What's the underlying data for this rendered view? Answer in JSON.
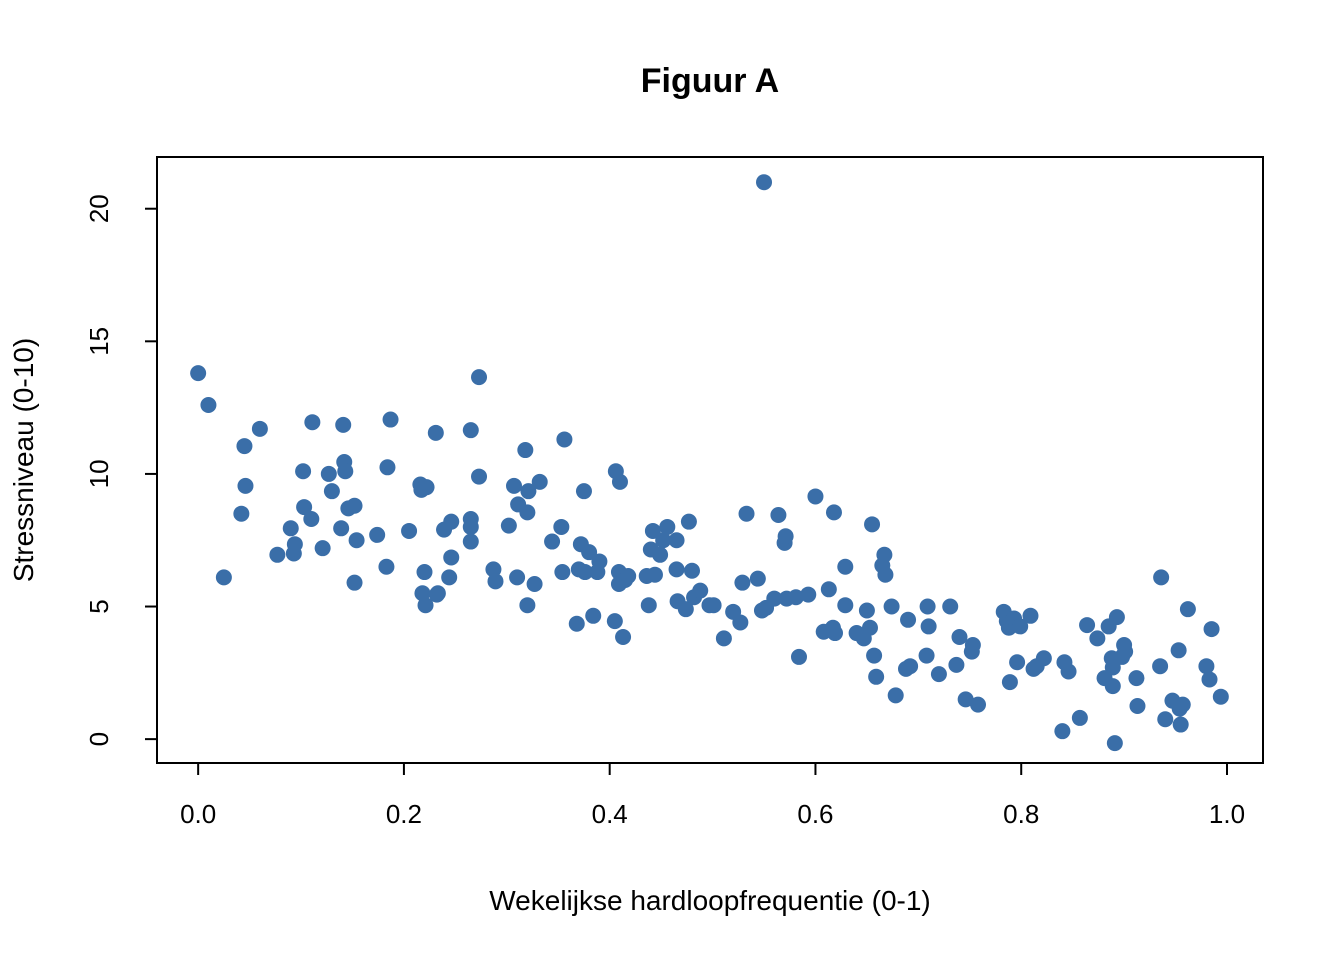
{
  "chart_data": {
    "type": "scatter",
    "title": "Figuur A",
    "xlabel": "Wekelijkse hardloopfrequentie (0-1)",
    "ylabel": "Stressniveau (0-10)",
    "xlim": [
      -0.04,
      1.035
    ],
    "ylim": [
      -0.9,
      21.95
    ],
    "xticks": [
      0.0,
      0.2,
      0.4,
      0.6,
      0.8,
      1.0
    ],
    "xtick_labels": [
      "0.0",
      "0.2",
      "0.4",
      "0.6",
      "0.8",
      "1.0"
    ],
    "yticks": [
      0,
      5,
      10,
      15,
      20
    ],
    "ytick_labels": [
      "0",
      "5",
      "10",
      "15",
      "20"
    ],
    "grid": false,
    "legend": "none",
    "point_color": "#3a6ea8",
    "series": [
      {
        "points": [
          [
            0.0,
            13.8
          ],
          [
            0.01,
            12.6
          ],
          [
            0.025,
            6.1
          ],
          [
            0.042,
            8.5
          ],
          [
            0.045,
            11.05
          ],
          [
            0.046,
            9.55
          ],
          [
            0.06,
            11.7
          ],
          [
            0.077,
            6.95
          ],
          [
            0.09,
            7.95
          ],
          [
            0.093,
            7.0
          ],
          [
            0.094,
            7.35
          ],
          [
            0.102,
            10.1
          ],
          [
            0.103,
            8.75
          ],
          [
            0.11,
            8.3
          ],
          [
            0.111,
            11.95
          ],
          [
            0.121,
            7.2
          ],
          [
            0.127,
            10.0
          ],
          [
            0.13,
            9.35
          ],
          [
            0.139,
            7.95
          ],
          [
            0.141,
            11.85
          ],
          [
            0.142,
            10.45
          ],
          [
            0.143,
            10.1
          ],
          [
            0.146,
            8.7
          ],
          [
            0.152,
            5.9
          ],
          [
            0.152,
            8.8
          ],
          [
            0.154,
            7.5
          ],
          [
            0.174,
            7.7
          ],
          [
            0.183,
            6.5
          ],
          [
            0.184,
            10.25
          ],
          [
            0.187,
            12.05
          ],
          [
            0.205,
            7.85
          ],
          [
            0.216,
            9.6
          ],
          [
            0.217,
            9.4
          ],
          [
            0.218,
            5.5
          ],
          [
            0.22,
            6.3
          ],
          [
            0.221,
            5.05
          ],
          [
            0.222,
            9.5
          ],
          [
            0.231,
            11.55
          ],
          [
            0.232,
            5.45
          ],
          [
            0.233,
            5.5
          ],
          [
            0.239,
            7.9
          ],
          [
            0.244,
            6.1
          ],
          [
            0.246,
            8.2
          ],
          [
            0.246,
            6.85
          ],
          [
            0.265,
            8.3
          ],
          [
            0.265,
            11.65
          ],
          [
            0.265,
            8.0
          ],
          [
            0.265,
            7.45
          ],
          [
            0.273,
            13.65
          ],
          [
            0.273,
            9.9
          ],
          [
            0.287,
            6.4
          ],
          [
            0.289,
            5.95
          ],
          [
            0.302,
            8.05
          ],
          [
            0.307,
            9.55
          ],
          [
            0.31,
            6.1
          ],
          [
            0.311,
            8.85
          ],
          [
            0.318,
            10.9
          ],
          [
            0.32,
            8.55
          ],
          [
            0.32,
            5.05
          ],
          [
            0.321,
            9.35
          ],
          [
            0.327,
            5.85
          ],
          [
            0.332,
            9.7
          ],
          [
            0.344,
            7.45
          ],
          [
            0.353,
            8.0
          ],
          [
            0.354,
            6.3
          ],
          [
            0.356,
            11.3
          ],
          [
            0.368,
            4.35
          ],
          [
            0.37,
            6.4
          ],
          [
            0.372,
            7.35
          ],
          [
            0.375,
            9.35
          ],
          [
            0.376,
            6.3
          ],
          [
            0.38,
            7.05
          ],
          [
            0.384,
            4.65
          ],
          [
            0.388,
            6.3
          ],
          [
            0.39,
            6.7
          ],
          [
            0.405,
            4.45
          ],
          [
            0.406,
            10.1
          ],
          [
            0.409,
            6.3
          ],
          [
            0.409,
            5.85
          ],
          [
            0.41,
            9.7
          ],
          [
            0.413,
            3.85
          ],
          [
            0.415,
            6.0
          ],
          [
            0.418,
            6.15
          ],
          [
            0.436,
            6.15
          ],
          [
            0.438,
            5.05
          ],
          [
            0.44,
            7.15
          ],
          [
            0.442,
            7.85
          ],
          [
            0.444,
            6.2
          ],
          [
            0.449,
            6.95
          ],
          [
            0.452,
            7.5
          ],
          [
            0.456,
            8.0
          ],
          [
            0.465,
            7.5
          ],
          [
            0.465,
            6.4
          ],
          [
            0.466,
            5.2
          ],
          [
            0.474,
            4.9
          ],
          [
            0.477,
            8.2
          ],
          [
            0.48,
            6.35
          ],
          [
            0.482,
            5.35
          ],
          [
            0.488,
            5.6
          ],
          [
            0.497,
            5.05
          ],
          [
            0.501,
            5.05
          ],
          [
            0.511,
            3.8
          ],
          [
            0.52,
            4.8
          ],
          [
            0.527,
            4.4
          ],
          [
            0.529,
            5.9
          ],
          [
            0.533,
            8.5
          ],
          [
            0.544,
            6.05
          ],
          [
            0.548,
            4.85
          ],
          [
            0.55,
            21.0
          ],
          [
            0.552,
            4.95
          ],
          [
            0.56,
            5.3
          ],
          [
            0.564,
            8.45
          ],
          [
            0.57,
            7.4
          ],
          [
            0.571,
            7.65
          ],
          [
            0.572,
            5.3
          ],
          [
            0.581,
            5.35
          ],
          [
            0.584,
            3.1
          ],
          [
            0.593,
            5.45
          ],
          [
            0.6,
            9.15
          ],
          [
            0.608,
            4.05
          ],
          [
            0.613,
            5.65
          ],
          [
            0.617,
            4.2
          ],
          [
            0.618,
            8.55
          ],
          [
            0.619,
            4.0
          ],
          [
            0.629,
            6.5
          ],
          [
            0.629,
            5.05
          ],
          [
            0.64,
            4.0
          ],
          [
            0.647,
            3.8
          ],
          [
            0.65,
            4.85
          ],
          [
            0.653,
            4.2
          ],
          [
            0.655,
            8.1
          ],
          [
            0.657,
            3.15
          ],
          [
            0.659,
            2.35
          ],
          [
            0.665,
            6.55
          ],
          [
            0.667,
            6.95
          ],
          [
            0.668,
            6.2
          ],
          [
            0.674,
            5.0
          ],
          [
            0.678,
            1.65
          ],
          [
            0.688,
            2.65
          ],
          [
            0.69,
            4.5
          ],
          [
            0.692,
            2.75
          ],
          [
            0.708,
            3.15
          ],
          [
            0.709,
            5.0
          ],
          [
            0.71,
            4.25
          ],
          [
            0.72,
            2.45
          ],
          [
            0.731,
            5.0
          ],
          [
            0.737,
            2.8
          ],
          [
            0.74,
            3.85
          ],
          [
            0.746,
            1.5
          ],
          [
            0.752,
            3.3
          ],
          [
            0.753,
            3.55
          ],
          [
            0.758,
            1.3
          ],
          [
            0.783,
            4.8
          ],
          [
            0.786,
            4.45
          ],
          [
            0.788,
            4.2
          ],
          [
            0.789,
            2.15
          ],
          [
            0.79,
            4.35
          ],
          [
            0.793,
            4.55
          ],
          [
            0.796,
            2.9
          ],
          [
            0.799,
            4.25
          ],
          [
            0.809,
            4.65
          ],
          [
            0.812,
            2.65
          ],
          [
            0.815,
            2.75
          ],
          [
            0.822,
            3.05
          ],
          [
            0.84,
            0.3
          ],
          [
            0.842,
            2.9
          ],
          [
            0.846,
            2.55
          ],
          [
            0.857,
            0.8
          ],
          [
            0.864,
            4.3
          ],
          [
            0.874,
            3.8
          ],
          [
            0.881,
            2.3
          ],
          [
            0.885,
            4.25
          ],
          [
            0.888,
            3.05
          ],
          [
            0.889,
            2.7
          ],
          [
            0.889,
            2.0
          ],
          [
            0.891,
            -0.15
          ],
          [
            0.893,
            4.6
          ],
          [
            0.898,
            3.1
          ],
          [
            0.9,
            3.55
          ],
          [
            0.901,
            3.3
          ],
          [
            0.912,
            2.3
          ],
          [
            0.913,
            1.25
          ],
          [
            0.935,
            2.75
          ],
          [
            0.936,
            6.1
          ],
          [
            0.94,
            0.75
          ],
          [
            0.947,
            1.45
          ],
          [
            0.953,
            3.35
          ],
          [
            0.954,
            1.15
          ],
          [
            0.955,
            0.55
          ],
          [
            0.957,
            1.3
          ],
          [
            0.962,
            4.9
          ],
          [
            0.98,
            2.75
          ],
          [
            0.983,
            2.25
          ],
          [
            0.985,
            4.15
          ],
          [
            0.994,
            1.6
          ]
        ]
      }
    ]
  }
}
